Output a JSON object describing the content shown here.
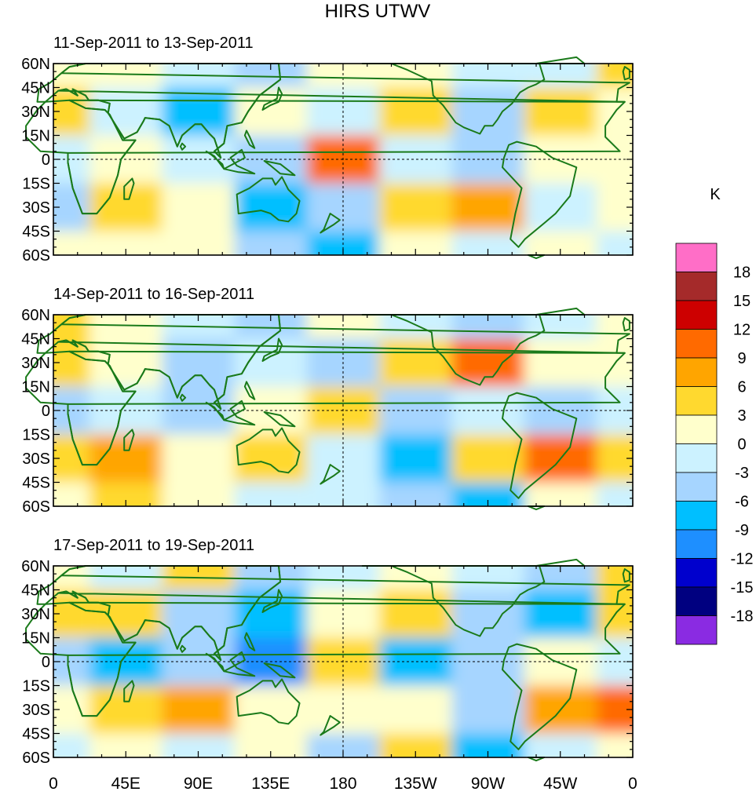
{
  "title": "HIRS UTWV",
  "panels": [
    {
      "label": "11-Sep-2011 to 13-Sep-2011"
    },
    {
      "label": "14-Sep-2011 to 16-Sep-2011"
    },
    {
      "label": "17-Sep-2011 to 19-Sep-2011"
    }
  ],
  "axes": {
    "lat_labels": [
      "60N",
      "45N",
      "30N",
      "15N",
      "0",
      "15S",
      "30S",
      "45S",
      "60S"
    ],
    "lat_values": [
      60,
      45,
      30,
      15,
      0,
      -15,
      -30,
      -45,
      -60
    ],
    "lon_labels": [
      "0",
      "45E",
      "90E",
      "135E",
      "180",
      "135W",
      "90W",
      "45W",
      "0"
    ],
    "lon_values": [
      0,
      45,
      90,
      135,
      180,
      225,
      270,
      315,
      360
    ]
  },
  "colorbar": {
    "unit": "K",
    "levels": [
      "18",
      "15",
      "12",
      "9",
      "6",
      "3",
      "0",
      "-3",
      "-6",
      "-9",
      "-12",
      "-15",
      "-18"
    ],
    "colors": [
      "#ff6ec7",
      "#a52a2a",
      "#cd0000",
      "#ff6a00",
      "#ffa500",
      "#ffd92f",
      "#ffffcc",
      "#ccf2ff",
      "#a6d5ff",
      "#00bfff",
      "#1e8fff",
      "#0000cd",
      "#000080",
      "#8a2be2"
    ]
  },
  "chart_data": {
    "type": "heatmap",
    "title": "HIRS UTWV",
    "unit": "K",
    "xlim": [
      0,
      360
    ],
    "ylim": [
      -60,
      60
    ],
    "grid_lon": [
      0,
      45,
      90,
      135,
      180,
      225,
      270,
      315,
      360
    ],
    "grid_lat": [
      60,
      30,
      0,
      -30,
      -60
    ],
    "panels": [
      {
        "period": "11-Sep-2011 to 13-Sep-2011",
        "values": [
          [
            3,
            3,
            0,
            -3,
            3,
            3,
            0,
            0,
            6
          ],
          [
            6,
            0,
            -6,
            3,
            0,
            6,
            -3,
            6,
            3
          ],
          [
            0,
            3,
            0,
            -3,
            12,
            0,
            -3,
            3,
            3
          ],
          [
            -3,
            6,
            3,
            -6,
            -3,
            6,
            9,
            0,
            3
          ],
          [
            3,
            3,
            3,
            -3,
            -6,
            3,
            0,
            3,
            0
          ]
        ]
      },
      {
        "period": "14-Sep-2011 to 16-Sep-2011",
        "values": [
          [
            6,
            3,
            0,
            -3,
            3,
            0,
            -3,
            0,
            3
          ],
          [
            6,
            3,
            -3,
            0,
            -3,
            6,
            12,
            3,
            3
          ],
          [
            -3,
            0,
            -3,
            3,
            6,
            -3,
            0,
            -3,
            0
          ],
          [
            6,
            9,
            3,
            6,
            0,
            -6,
            6,
            12,
            6
          ],
          [
            3,
            6,
            3,
            0,
            0,
            -3,
            -6,
            3,
            0
          ]
        ]
      },
      {
        "period": "17-Sep-2011 to 19-Sep-2011",
        "values": [
          [
            3,
            0,
            6,
            -3,
            0,
            3,
            0,
            -3,
            6
          ],
          [
            6,
            6,
            -3,
            -6,
            3,
            6,
            -3,
            -6,
            6
          ],
          [
            -3,
            -6,
            -3,
            -9,
            6,
            -6,
            -3,
            3,
            0
          ],
          [
            3,
            6,
            9,
            3,
            3,
            3,
            -3,
            9,
            12
          ],
          [
            0,
            3,
            0,
            3,
            -3,
            6,
            -6,
            0,
            3
          ]
        ]
      }
    ]
  }
}
